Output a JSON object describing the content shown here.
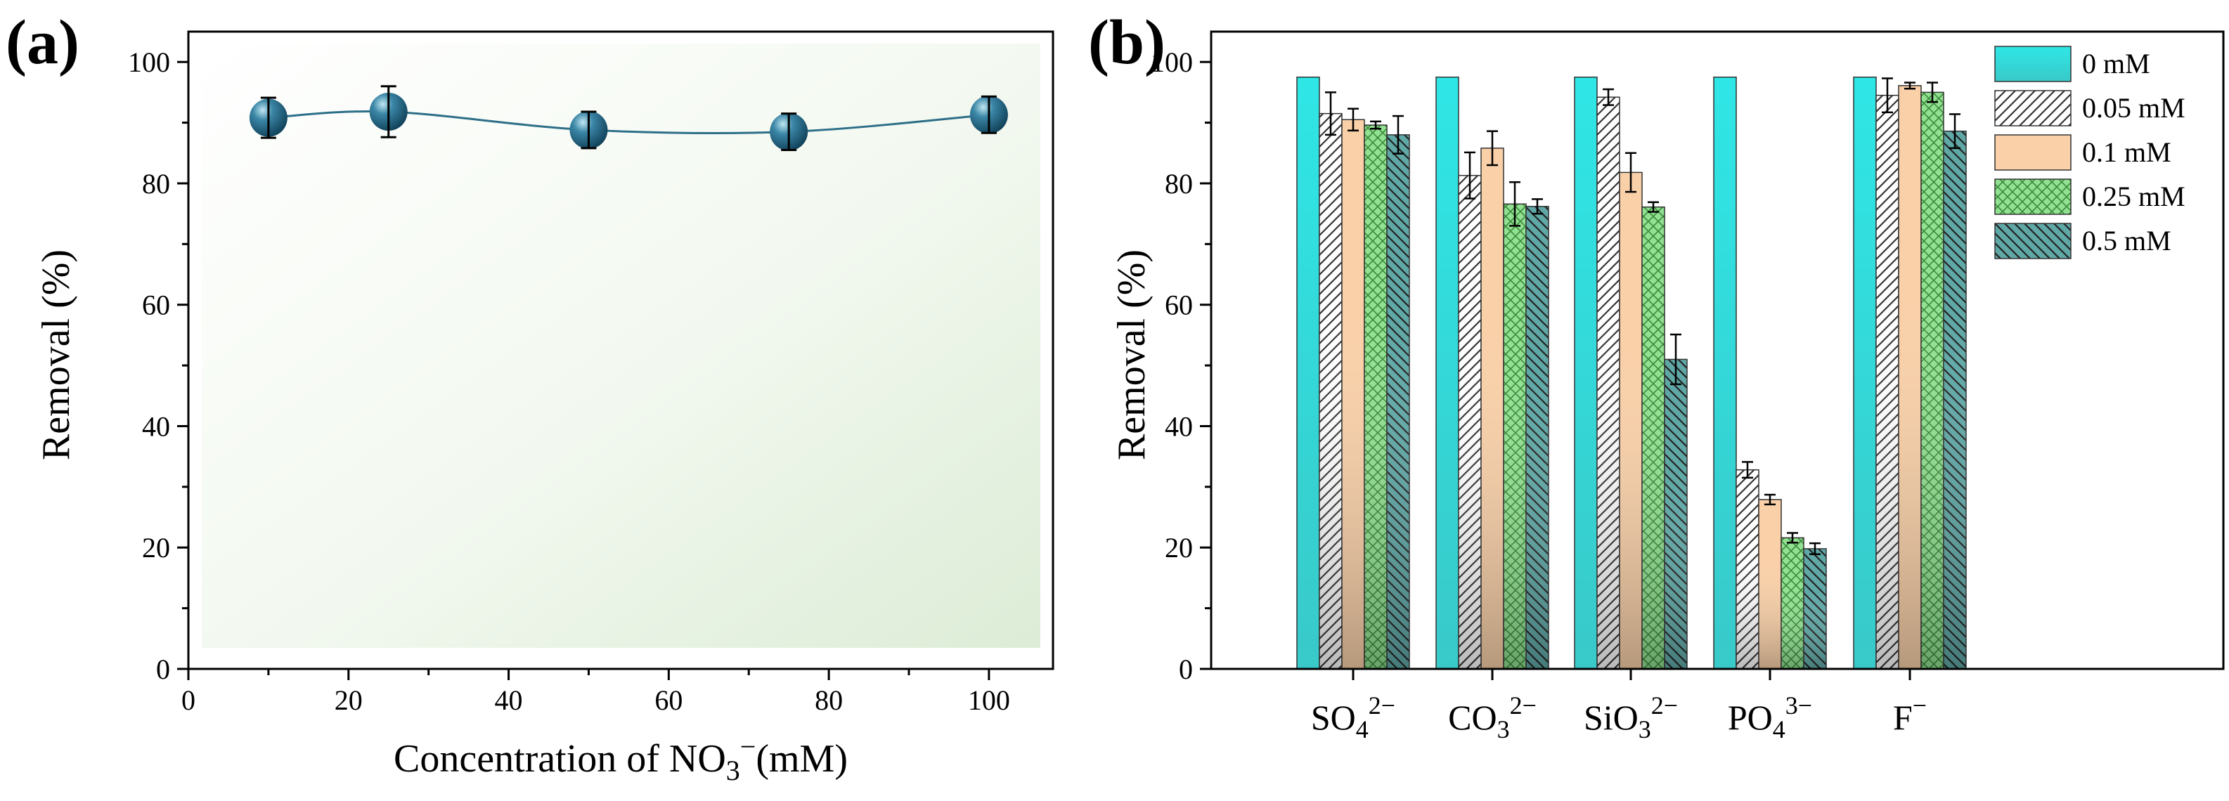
{
  "panels": {
    "a": {
      "label": "(a)",
      "xlabel_main": "Concentration of NO",
      "xlabel_sub": "3",
      "xlabel_sup": "−",
      "xlabel_unit": "(mM)",
      "ylabel": "Removal (%)"
    },
    "b": {
      "label": "(b)",
      "ylabel": "Removal (%)"
    }
  },
  "chart_data": [
    {
      "type": "line",
      "panel": "a",
      "title": "",
      "xlabel": "Concentration of NO3− (mM)",
      "ylabel": "Removal (%)",
      "xlim": [
        0,
        108
      ],
      "ylim": [
        0,
        105
      ],
      "xticks": [
        0,
        20,
        40,
        60,
        80,
        100
      ],
      "yticks": [
        0,
        20,
        40,
        60,
        80,
        100
      ],
      "x": [
        10,
        25,
        50,
        75,
        100
      ],
      "y": [
        90.8,
        91.8,
        88.8,
        88.5,
        91.3
      ],
      "err": [
        3.3,
        4.2,
        3.0,
        3.0,
        3.0
      ],
      "colors": {
        "line": "#2d6f88",
        "marker": "#1d5f7d",
        "background": "#e8f3e4"
      }
    },
    {
      "type": "bar",
      "panel": "b",
      "title": "",
      "xlabel": "",
      "ylabel": "Removal (%)",
      "ylim": [
        0,
        105
      ],
      "yticks": [
        0,
        20,
        40,
        60,
        80,
        100
      ],
      "categories": [
        {
          "base": "SO",
          "sub": "4",
          "sup": "2−"
        },
        {
          "base": "CO",
          "sub": "3",
          "sup": "2−"
        },
        {
          "base": "SiO",
          "sub": "3",
          "sup": "2−"
        },
        {
          "base": "PO",
          "sub": "4",
          "sup": "3−"
        },
        {
          "base": "F",
          "sub": "",
          "sup": "−"
        }
      ],
      "series": [
        {
          "name": "0 mM",
          "color": "#33e0e0",
          "pattern": "solid",
          "values": [
            97.5,
            97.5,
            97.5,
            97.5,
            97.5
          ],
          "errors": [
            0,
            0,
            0,
            0,
            0
          ]
        },
        {
          "name": "0.05 mM",
          "color": "#ffffff",
          "pattern": "diagonal-up",
          "values": [
            91.5,
            81.3,
            94.2,
            32.8,
            94.5
          ],
          "errors": [
            3.5,
            3.8,
            1.3,
            1.3,
            2.8
          ]
        },
        {
          "name": "0.1 mM",
          "color": "#f9d0a8",
          "pattern": "solid",
          "values": [
            90.5,
            85.8,
            81.8,
            27.9,
            96.1
          ],
          "errors": [
            1.8,
            2.8,
            3.2,
            0.8,
            0.5
          ]
        },
        {
          "name": "0.25 mM",
          "color": "#92e092",
          "pattern": "crosshatch",
          "values": [
            89.6,
            76.6,
            76.1,
            21.6,
            95.0
          ],
          "errors": [
            0.6,
            3.6,
            0.8,
            0.8,
            1.6
          ]
        },
        {
          "name": "0.5 mM",
          "color": "#5fa8a6",
          "pattern": "diagonal-down",
          "values": [
            88.0,
            76.2,
            51.0,
            19.8,
            88.6
          ],
          "errors": [
            3.1,
            1.2,
            4.1,
            0.9,
            2.8
          ]
        }
      ]
    }
  ]
}
